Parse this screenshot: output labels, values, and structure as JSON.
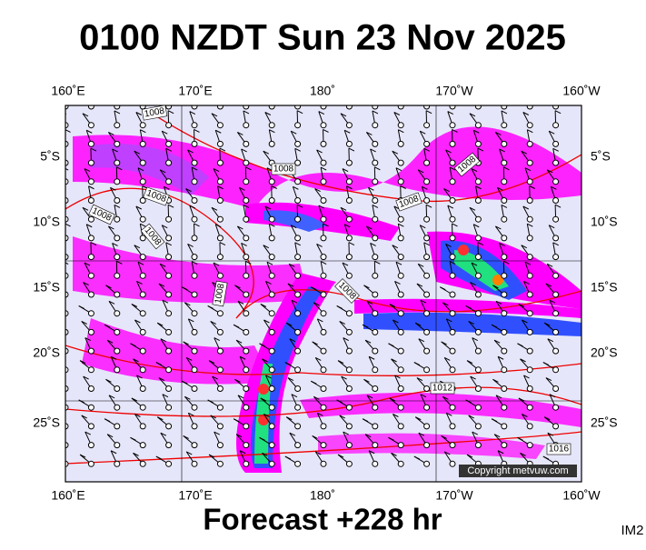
{
  "header": {
    "title": "0100 NZDT Sun 23 Nov 2025"
  },
  "footer": {
    "forecast": "Forecast +228 hr",
    "code": "IM2"
  },
  "map": {
    "lon_labels": [
      "160˚E",
      "170˚E",
      "180˚",
      "170˚W",
      "160˚W"
    ],
    "lat_labels": [
      "5˚S",
      "10˚S",
      "15˚S",
      "20˚S",
      "25˚S"
    ],
    "isobar_labels": [
      "1008",
      "1008",
      "1008",
      "1008",
      "1008",
      "1008",
      "1008",
      "1008",
      "1008",
      "1012",
      "1016"
    ],
    "copyright": "Copyright metvuw.com"
  }
}
